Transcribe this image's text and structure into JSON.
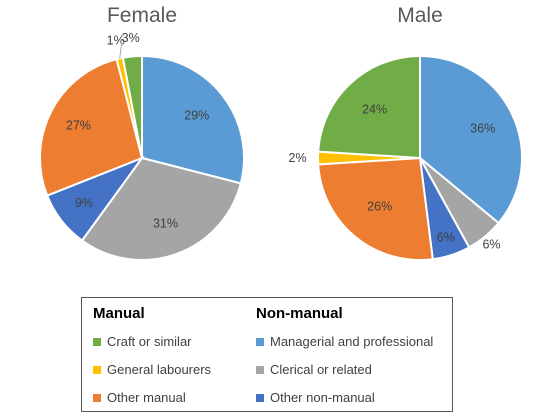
{
  "chart_data": [
    {
      "type": "pie",
      "title": "Female",
      "slices": [
        {
          "label": "Managerial and professional",
          "value": 29,
          "text": "29%"
        },
        {
          "label": "Clerical or related",
          "value": 31,
          "text": "31%"
        },
        {
          "label": "Other non-manual",
          "value": 9,
          "text": "9%"
        },
        {
          "label": "Other manual",
          "value": 27,
          "text": "27%"
        },
        {
          "label": "General labourers",
          "value": 1,
          "text": "1%"
        },
        {
          "label": "Craft or similar",
          "value": 3,
          "text": "3%"
        }
      ]
    },
    {
      "type": "pie",
      "title": "Male",
      "slices": [
        {
          "label": "Managerial and professional",
          "value": 36,
          "text": "36%"
        },
        {
          "label": "Clerical or related",
          "value": 6,
          "text": "6%"
        },
        {
          "label": "Other non-manual",
          "value": 6,
          "text": "6%"
        },
        {
          "label": "Other manual",
          "value": 26,
          "text": "26%"
        },
        {
          "label": "General labourers",
          "value": 2,
          "text": "2%"
        },
        {
          "label": "Craft or similar",
          "value": 24,
          "text": "24%"
        }
      ]
    }
  ],
  "colors": {
    "Managerial and professional": "#5B9BD5",
    "Clerical or related": "#A5A5A5",
    "Other non-manual": "#4472C4",
    "Other manual": "#ED7D31",
    "General labourers": "#FFC000",
    "Craft or similar": "#70AD47"
  },
  "legend": {
    "manual_heading": "Manual",
    "nonmanual_heading": "Non-manual",
    "manual_items": [
      "Craft or similar",
      "General labourers",
      "Other manual"
    ],
    "nonmanual_items": [
      "Managerial and professional",
      "Clerical or related",
      "Other non-manual"
    ]
  }
}
